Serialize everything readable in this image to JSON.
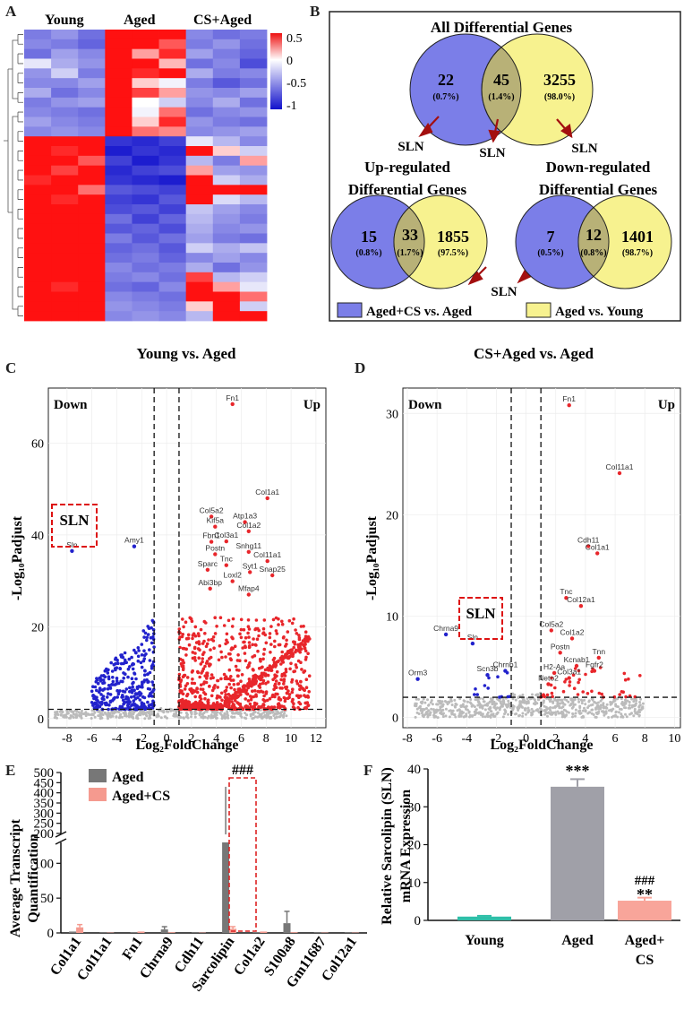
{
  "panels": {
    "a": {
      "letter": "A",
      "groups": [
        "Young",
        "Aged",
        "CS+Aged"
      ],
      "colorbar": {
        "labels": [
          "0.5",
          "0",
          "-0.5",
          "-1"
        ],
        "values": [
          0.5,
          0,
          -0.5,
          -1
        ],
        "range": [
          -1.1,
          0.6
        ]
      }
    },
    "b": {
      "letter": "B",
      "all_title": "All Differential Genes",
      "up_title": [
        "Up-regulated",
        "Differential Genes"
      ],
      "down_title": [
        "Down-regulated",
        "Differential Genes"
      ],
      "all": {
        "left": "22",
        "left_pct": "(0.7%)",
        "mid": "45",
        "mid_pct": "(1.4%)",
        "right": "3255",
        "right_pct": "(98.0%)"
      },
      "up": {
        "left": "15",
        "left_pct": "(0.8%)",
        "mid": "33",
        "mid_pct": "(1.7%)",
        "right": "1855",
        "right_pct": "(97.5%)"
      },
      "down": {
        "left": "7",
        "left_pct": "(0.5%)",
        "mid": "12",
        "mid_pct": "(0.8%)",
        "right": "1401",
        "right_pct": "(98.7%)"
      },
      "sln_label": "SLN",
      "legend": [
        "Aged+CS vs. Aged",
        "Aged vs. Young"
      ],
      "colors": {
        "blue": "#7b7ee8",
        "yellow": "#f7f28f",
        "overlap": "#b8b177",
        "arrow": "#a30f0f"
      }
    },
    "c": {
      "letter": "C",
      "title": "Young vs. Aged",
      "down": "Down",
      "up": "Up",
      "xlabel": "Log₂FoldChange",
      "ylabel": "-Log₁₀Padjust",
      "xticks": [
        "-8",
        "-6",
        "-4",
        "-2",
        "0",
        "2",
        "4",
        "6",
        "8",
        "10",
        "12"
      ],
      "yticks": [
        "0",
        "20",
        "40",
        "60"
      ],
      "sln_box": "SLN",
      "genes": [
        {
          "name": "Fn1",
          "x": 5.3,
          "y": 68.5,
          "dir": "up"
        },
        {
          "name": "Col1a1",
          "x": 8.1,
          "y": 48.0,
          "dir": "up"
        },
        {
          "name": "Col5a2",
          "x": 3.6,
          "y": 44.0,
          "dir": "up"
        },
        {
          "name": "Atp1a3",
          "x": 6.3,
          "y": 42.8,
          "dir": "up"
        },
        {
          "name": "Kif5a",
          "x": 3.9,
          "y": 41.8,
          "dir": "up"
        },
        {
          "name": "Col1a2",
          "x": 6.6,
          "y": 40.8,
          "dir": "up"
        },
        {
          "name": "Fbn1",
          "x": 3.6,
          "y": 38.5,
          "dir": "up"
        },
        {
          "name": "Col3a1",
          "x": 4.8,
          "y": 38.6,
          "dir": "up"
        },
        {
          "name": "Postn",
          "x": 3.9,
          "y": 35.8,
          "dir": "up"
        },
        {
          "name": "Snhg11",
          "x": 6.6,
          "y": 36.3,
          "dir": "up"
        },
        {
          "name": "Tnc",
          "x": 4.8,
          "y": 33.4,
          "dir": "up"
        },
        {
          "name": "Col11a1",
          "x": 8.1,
          "y": 34.3,
          "dir": "up"
        },
        {
          "name": "Sparc",
          "x": 3.3,
          "y": 32.4,
          "dir": "up"
        },
        {
          "name": "Syt1",
          "x": 6.7,
          "y": 31.9,
          "dir": "up"
        },
        {
          "name": "Snap25",
          "x": 8.5,
          "y": 31.2,
          "dir": "up"
        },
        {
          "name": "Loxl2",
          "x": 5.3,
          "y": 29.9,
          "dir": "up"
        },
        {
          "name": "Abi3bp",
          "x": 3.5,
          "y": 28.3,
          "dir": "up"
        },
        {
          "name": "Mfap4",
          "x": 6.6,
          "y": 27.0,
          "dir": "up"
        },
        {
          "name": "Amy1",
          "x": -2.6,
          "y": 37.5,
          "dir": "down"
        },
        {
          "name": "Sln",
          "x": -7.6,
          "y": 36.5,
          "dir": "down"
        }
      ],
      "colors": {
        "up": "#e8262b",
        "down": "#2222cc",
        "ns": "#bbbbbb"
      }
    },
    "d": {
      "letter": "D",
      "title": "CS+Aged vs. Aged",
      "down": "Down",
      "up": "Up",
      "xlabel": "Log₂FoldChange",
      "ylabel": "-Log₁₀Padjust",
      "xticks": [
        "-8",
        "-6",
        "-4",
        "-2",
        "0",
        "2",
        "4",
        "6",
        "8",
        "10"
      ],
      "yticks": [
        "0",
        "10",
        "20",
        "30"
      ],
      "sln_box": "SLN",
      "genes": [
        {
          "name": "Fn1",
          "x": 2.9,
          "y": 30.8,
          "dir": "up"
        },
        {
          "name": "Col11a1",
          "x": 6.3,
          "y": 24.1,
          "dir": "up"
        },
        {
          "name": "Cdh11",
          "x": 4.2,
          "y": 16.9,
          "dir": "up"
        },
        {
          "name": "Col1a1",
          "x": 4.8,
          "y": 16.2,
          "dir": "up"
        },
        {
          "name": "Tnc",
          "x": 2.7,
          "y": 11.8,
          "dir": "up"
        },
        {
          "name": "Col12a1",
          "x": 3.7,
          "y": 11.0,
          "dir": "up"
        },
        {
          "name": "Col5a2",
          "x": 1.7,
          "y": 8.6,
          "dir": "up"
        },
        {
          "name": "Col1a2",
          "x": 3.1,
          "y": 7.8,
          "dir": "up"
        },
        {
          "name": "Postn",
          "x": 2.3,
          "y": 6.4,
          "dir": "up"
        },
        {
          "name": "Tnn",
          "x": 4.9,
          "y": 5.9,
          "dir": "up"
        },
        {
          "name": "Kcnab1",
          "x": 3.4,
          "y": 5.1,
          "dir": "up"
        },
        {
          "name": "H2-Aa",
          "x": 1.9,
          "y": 4.4,
          "dir": "up"
        },
        {
          "name": "Fgfr2",
          "x": 4.6,
          "y": 4.6,
          "dir": "up"
        },
        {
          "name": "Col3a1",
          "x": 2.9,
          "y": 3.9,
          "dir": "up"
        },
        {
          "name": "Neto2",
          "x": 1.5,
          "y": 3.3,
          "dir": "up"
        },
        {
          "name": "Chrna9",
          "x": -5.4,
          "y": 8.2,
          "dir": "down"
        },
        {
          "name": "Sln",
          "x": -3.6,
          "y": 7.3,
          "dir": "down"
        },
        {
          "name": "Chrnb1",
          "x": -1.4,
          "y": 4.6,
          "dir": "down"
        },
        {
          "name": "Scn3b",
          "x": -2.6,
          "y": 4.2,
          "dir": "down"
        },
        {
          "name": "Orm3",
          "x": -7.3,
          "y": 3.8,
          "dir": "down"
        }
      ],
      "colors": {
        "up": "#e8262b",
        "down": "#2222cc",
        "ns": "#bbbbbb"
      }
    },
    "e": {
      "letter": "E",
      "ylabel": [
        "Average Transcript",
        "Quantification"
      ],
      "legend": [
        "Aged",
        "Aged+CS"
      ],
      "annotation": "###",
      "ticks_upper": [
        "200",
        "250",
        "300",
        "350",
        "400",
        "450",
        "500"
      ],
      "ticks_lower": [
        "0",
        "50",
        "100"
      ],
      "colors": {
        "aged": "#777777",
        "cs": "#f59a8f",
        "box": "#dd2222"
      }
    },
    "f": {
      "letter": "F",
      "ylabel": [
        "Relative Sarcolipin (SLN)",
        "mRNA Expression"
      ],
      "yticks": [
        "0",
        "10",
        "20",
        "30",
        "40"
      ],
      "annotations": [
        "***",
        "###",
        "**"
      ],
      "colors": {
        "young": "#2fbfa8",
        "aged": "#a0a0a8",
        "cs": "#f8a59a"
      }
    }
  },
  "chart_data": [
    {
      "type": "heatmap",
      "panel": "A",
      "columns": [
        "Young",
        "Young",
        "Young",
        "Aged",
        "Aged",
        "Aged",
        "CS+Aged",
        "CS+Aged",
        "CS+Aged"
      ],
      "value_range": [
        -1,
        0.5
      ],
      "rows": [
        [
          -0.55,
          -0.45,
          -0.6,
          0.5,
          0.5,
          0.5,
          -0.5,
          -0.6,
          -0.55
        ],
        [
          -0.5,
          -0.55,
          -0.65,
          0.5,
          0.5,
          0.35,
          -0.55,
          -0.45,
          -0.6
        ],
        [
          -0.6,
          -0.4,
          -0.5,
          0.5,
          0.2,
          0.45,
          -0.4,
          -0.55,
          -0.65
        ],
        [
          -0.1,
          -0.35,
          -0.45,
          0.5,
          0.5,
          0.15,
          -0.6,
          -0.5,
          -0.75
        ],
        [
          -0.45,
          -0.2,
          -0.55,
          0.5,
          0.45,
          0.5,
          -0.35,
          -0.55,
          -0.5
        ],
        [
          -0.5,
          -0.5,
          -0.4,
          0.5,
          0.1,
          -0.05,
          -0.55,
          -0.7,
          -0.6
        ],
        [
          -0.35,
          -0.6,
          -0.5,
          0.5,
          0.4,
          0.2,
          -0.45,
          -0.5,
          -0.4
        ],
        [
          -0.55,
          -0.45,
          -0.4,
          0.5,
          0.0,
          -0.2,
          -0.5,
          -0.35,
          -0.6
        ],
        [
          -0.5,
          -0.55,
          -0.6,
          0.5,
          -0.05,
          0.3,
          -0.6,
          -0.5,
          -0.45
        ],
        [
          -0.4,
          -0.5,
          -0.55,
          0.5,
          0.1,
          0.45,
          -0.45,
          -0.55,
          -0.6
        ],
        [
          -0.5,
          -0.45,
          -0.5,
          0.5,
          0.3,
          0.25,
          -0.5,
          -0.45,
          -0.4
        ],
        [
          0.5,
          0.5,
          0.5,
          -0.85,
          -0.9,
          -0.8,
          -0.1,
          -0.3,
          -0.5
        ],
        [
          0.5,
          0.45,
          0.5,
          -0.95,
          -0.85,
          -0.9,
          0.5,
          0.1,
          -0.2
        ],
        [
          0.5,
          0.5,
          0.35,
          -0.8,
          -0.95,
          -0.85,
          -0.3,
          -0.55,
          0.2
        ],
        [
          0.5,
          0.4,
          0.5,
          -0.9,
          -0.8,
          -0.75,
          0.2,
          -0.4,
          -0.45
        ],
        [
          0.45,
          0.5,
          0.5,
          -0.85,
          -0.9,
          -0.95,
          0.5,
          -0.2,
          -0.35
        ],
        [
          0.5,
          0.5,
          0.3,
          -0.7,
          -0.75,
          -0.8,
          0.5,
          0.5,
          0.5
        ],
        [
          0.5,
          0.45,
          0.5,
          -0.8,
          -0.85,
          -0.7,
          0.5,
          -0.15,
          -0.3
        ],
        [
          0.5,
          0.5,
          0.5,
          -0.75,
          -0.7,
          -0.8,
          -0.25,
          -0.4,
          -0.5
        ],
        [
          0.5,
          0.5,
          0.5,
          -0.6,
          -0.8,
          -0.65,
          -0.3,
          -0.45,
          -0.55
        ],
        [
          0.5,
          0.5,
          0.5,
          -0.7,
          -0.65,
          -0.75,
          -0.35,
          -0.5,
          -0.45
        ],
        [
          0.5,
          0.5,
          0.5,
          -0.55,
          -0.7,
          -0.6,
          -0.4,
          -0.55,
          -0.6
        ],
        [
          0.5,
          0.5,
          0.5,
          -0.65,
          -0.6,
          -0.7,
          -0.2,
          -0.35,
          -0.25
        ],
        [
          0.5,
          0.5,
          0.5,
          -0.6,
          -0.55,
          -0.65,
          -0.5,
          -0.4,
          -0.5
        ],
        [
          0.5,
          0.5,
          0.5,
          -0.5,
          -0.6,
          -0.55,
          -0.35,
          -0.6,
          -0.45
        ],
        [
          0.5,
          0.5,
          0.5,
          -0.55,
          -0.5,
          -0.6,
          0.4,
          -0.3,
          -0.2
        ],
        [
          0.5,
          0.45,
          0.5,
          -0.6,
          -0.65,
          -0.5,
          0.5,
          0.2,
          -0.1
        ],
        [
          0.5,
          0.5,
          0.5,
          -0.5,
          -0.55,
          -0.6,
          0.5,
          0.5,
          0.3
        ],
        [
          0.5,
          0.5,
          0.5,
          -0.45,
          -0.5,
          -0.55,
          0.1,
          0.5,
          -0.2
        ],
        [
          0.5,
          0.5,
          0.5,
          -0.5,
          -0.45,
          -0.5,
          -0.3,
          0.5,
          0.5
        ]
      ]
    },
    {
      "type": "scatter",
      "panel": "C",
      "title": "Young vs. Aged",
      "xlabel": "Log2FoldChange",
      "ylabel": "-Log10Padjust",
      "xlim": [
        -9.5,
        12.8
      ],
      "ylim": [
        -2,
        72
      ],
      "fc_threshold": [
        -1,
        1
      ],
      "padj_threshold": 2
    },
    {
      "type": "scatter",
      "panel": "D",
      "title": "CS+Aged vs. Aged",
      "xlabel": "Log2FoldChange",
      "ylabel": "-Log10Padjust",
      "xlim": [
        -8.3,
        10.4
      ],
      "ylim": [
        -1,
        32.5
      ],
      "fc_threshold": [
        -1,
        1
      ],
      "padj_threshold": 2
    },
    {
      "type": "bar",
      "panel": "E",
      "ylabel": "Average Transcript Quantification",
      "categories": [
        "Col1a1",
        "Col11a1",
        "Fn1",
        "Chrna9",
        "Cdh11",
        "Sarcolipin",
        "Col1a2",
        "S100a8",
        "Gm11687",
        "Col12a1"
      ],
      "series": [
        {
          "name": "Aged",
          "values": [
            2,
            0.5,
            1,
            5,
            0.5,
            175,
            1,
            14,
            0.5,
            0.5
          ],
          "errors": [
            1,
            0.3,
            0.5,
            4,
            0.3,
            250,
            1,
            17,
            0.3,
            0.3
          ]
        },
        {
          "name": "Aged+CS",
          "values": [
            8,
            0.5,
            2,
            1,
            0.5,
            6,
            2,
            1,
            0.5,
            0.5
          ],
          "errors": [
            4,
            0.3,
            1,
            0.5,
            0.3,
            3,
            1,
            0.5,
            0.3,
            0.3
          ]
        }
      ],
      "ylim": [
        0,
        500
      ],
      "axis_break": [
        130,
        180
      ],
      "highlight": "Sarcolipin"
    },
    {
      "type": "bar",
      "panel": "F",
      "ylabel": "Relative Sarcolipin (SLN) mRNA Expression",
      "categories": [
        "Young",
        "Aged",
        "Aged+ CS"
      ],
      "values": [
        1,
        35.3,
        5.2
      ],
      "errors": [
        0.2,
        2.0,
        0.8
      ],
      "ylim": [
        0,
        40
      ]
    }
  ]
}
